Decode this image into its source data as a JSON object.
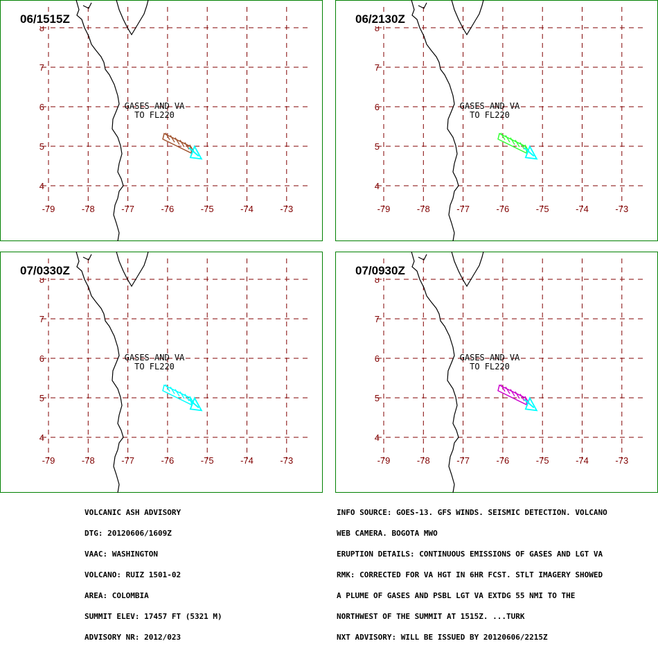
{
  "colors": {
    "frame": "#008000",
    "grid": "#800000",
    "coast": "#000000",
    "source_arrow": "#00ffff"
  },
  "map": {
    "lat_labels": [
      "8",
      "7",
      "6",
      "5",
      "4"
    ],
    "lon_labels": [
      "-79",
      "-78",
      "-77",
      "-76",
      "-75",
      "-74",
      "-73"
    ],
    "feature_label": [
      "GASES AND VA",
      "TO FL220"
    ]
  },
  "panels": [
    {
      "time": "06/1515Z",
      "plume_color": "#a0522d",
      "icon": "plume-arrow-icon"
    },
    {
      "time": "06/2130Z",
      "plume_color": "#33ff33",
      "icon": "plume-arrow-icon"
    },
    {
      "time": "07/0330Z",
      "plume_color": "#00ffff",
      "icon": "plume-arrow-icon"
    },
    {
      "time": "07/0930Z",
      "plume_color": "#cc00cc",
      "icon": "plume-arrow-icon"
    }
  ],
  "advisory_left": [
    "VOLCANIC ASH ADVISORY",
    "DTG: 20120606/1609Z",
    "VAAC: WASHINGTON",
    "VOLCANO: RUIZ 1501-02",
    "AREA: COLOMBIA",
    "SUMMIT ELEV: 17457 FT (5321 M)",
    "ADVISORY NR: 2012/023"
  ],
  "advisory_right": [
    "INFO SOURCE: GOES-13. GFS WINDS. SEISMIC DETECTION. VOLCANO",
    "WEB CAMERA. BOGOTA MWO",
    "ERUPTION DETAILS: CONTINUOUS EMISSIONS OF GASES AND LGT VA",
    "RMK: CORRECTED FOR VA HGT IN 6HR FCST. STLT IMAGERY SHOWED",
    "A PLUME OF GASES AND PSBL LGT VA EXTDG 55 NMI TO THE",
    "NORTHWEST OF THE SUMMIT AT 1515Z. ...TURK",
    "NXT ADVISORY: WILL BE ISSUED BY 20120606/2215Z"
  ]
}
